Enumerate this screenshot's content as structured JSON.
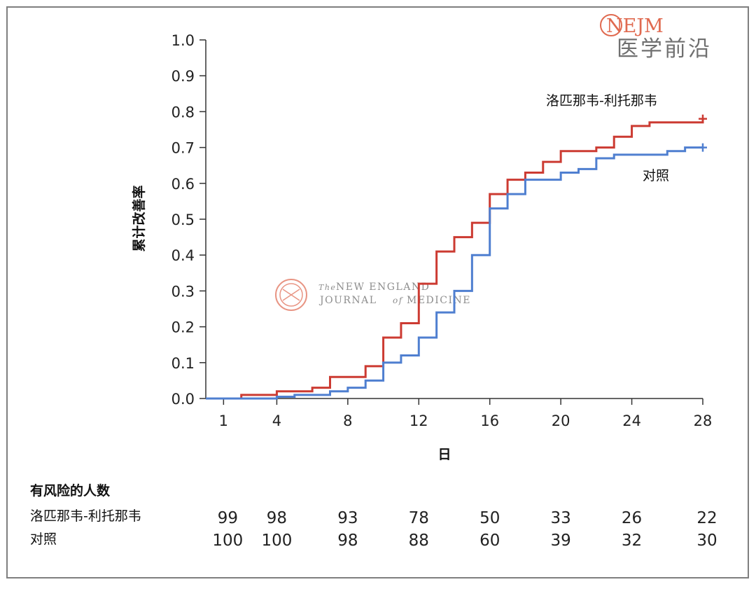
{
  "logo": {
    "nejm": "NEJM",
    "chinese": "医学前沿"
  },
  "watermark": {
    "line1_prefix": "The",
    "line1": "NEW ENGLAND",
    "line2_a": "JOURNAL",
    "line2_of": "of",
    "line2_b": "MEDICINE"
  },
  "chart_data": {
    "type": "line",
    "step": true,
    "xlabel": "日",
    "ylabel": "累计改善率",
    "xlim": [
      0,
      28
    ],
    "ylim": [
      0.0,
      1.0
    ],
    "x_ticks": [
      1,
      4,
      8,
      12,
      16,
      20,
      24,
      28
    ],
    "y_ticks": [
      "0.0",
      "0.1",
      "0.2",
      "0.3",
      "0.4",
      "0.5",
      "0.6",
      "0.7",
      "0.8",
      "0.9",
      "1.0"
    ],
    "series": [
      {
        "name": "洛匹那韦-利托那韦",
        "color": "#cc3b32",
        "points": [
          [
            0,
            0.0
          ],
          [
            2,
            0.01
          ],
          [
            4,
            0.02
          ],
          [
            6,
            0.03
          ],
          [
            7,
            0.06
          ],
          [
            9,
            0.09
          ],
          [
            10,
            0.17
          ],
          [
            11,
            0.21
          ],
          [
            12,
            0.32
          ],
          [
            13,
            0.41
          ],
          [
            14,
            0.45
          ],
          [
            15,
            0.49
          ],
          [
            16,
            0.57
          ],
          [
            17,
            0.61
          ],
          [
            18,
            0.63
          ],
          [
            19,
            0.66
          ],
          [
            20,
            0.69
          ],
          [
            22,
            0.7
          ],
          [
            23,
            0.73
          ],
          [
            24,
            0.76
          ],
          [
            25,
            0.77
          ],
          [
            27,
            0.77
          ],
          [
            28,
            0.78
          ]
        ]
      },
      {
        "name": "对照",
        "color": "#4f7fd0",
        "points": [
          [
            0,
            0.0
          ],
          [
            4,
            0.005
          ],
          [
            5,
            0.01
          ],
          [
            7,
            0.02
          ],
          [
            8,
            0.03
          ],
          [
            9,
            0.05
          ],
          [
            10,
            0.1
          ],
          [
            11,
            0.12
          ],
          [
            12,
            0.17
          ],
          [
            13,
            0.24
          ],
          [
            14,
            0.3
          ],
          [
            15,
            0.4
          ],
          [
            16,
            0.53
          ],
          [
            17,
            0.57
          ],
          [
            18,
            0.61
          ],
          [
            20,
            0.63
          ],
          [
            21,
            0.64
          ],
          [
            22,
            0.67
          ],
          [
            23,
            0.68
          ],
          [
            26,
            0.69
          ],
          [
            27,
            0.7
          ],
          [
            28,
            0.7
          ]
        ]
      }
    ]
  },
  "risk_table": {
    "title": "有风险的人数",
    "x": [
      1,
      4,
      8,
      12,
      16,
      20,
      24,
      28
    ],
    "rows": [
      {
        "name": "洛匹那韦-利托那韦",
        "values": [
          "99",
          "98",
          "93",
          "78",
          "50",
          "33",
          "26",
          "22"
        ]
      },
      {
        "name": "对照",
        "values": [
          "100",
          "100",
          "98",
          "88",
          "60",
          "39",
          "32",
          "30"
        ]
      }
    ]
  }
}
